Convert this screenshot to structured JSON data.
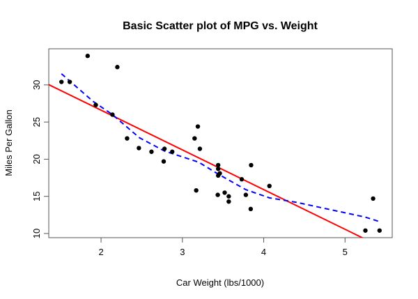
{
  "chart_data": {
    "type": "scatter",
    "title": "Basic Scatter plot of MPG vs. Weight",
    "xlabel": "Car Weight (lbs/1000)",
    "ylabel": "Miles Per Gallon",
    "xlim": [
      1.357,
      5.58
    ],
    "ylim": [
      9.44,
      34.86
    ],
    "xticks": [
      2,
      3,
      4,
      5
    ],
    "yticks": [
      10,
      15,
      20,
      25,
      30
    ],
    "grid": false,
    "points": {
      "x": [
        2.62,
        2.875,
        2.32,
        3.215,
        3.44,
        3.46,
        3.57,
        3.19,
        3.15,
        3.44,
        3.44,
        4.07,
        3.73,
        3.78,
        5.25,
        5.424,
        5.345,
        2.2,
        1.615,
        1.835,
        2.465,
        3.52,
        3.435,
        3.84,
        3.845,
        1.935,
        2.14,
        1.513,
        3.17,
        2.77,
        3.57,
        2.78
      ],
      "y": [
        21.0,
        21.0,
        22.8,
        21.4,
        18.7,
        18.1,
        14.3,
        24.4,
        22.8,
        19.2,
        17.8,
        16.4,
        17.3,
        15.2,
        10.4,
        10.4,
        14.7,
        32.4,
        30.4,
        33.9,
        21.5,
        15.5,
        15.2,
        13.3,
        19.2,
        27.3,
        26.0,
        30.4,
        15.8,
        19.7,
        15.0,
        21.4
      ],
      "color": "#000000"
    },
    "regression_line": {
      "intercept": 37.285,
      "slope": -5.344,
      "color": "#ff0000",
      "style": "solid"
    },
    "lowess_line": {
      "x": [
        1.513,
        1.9,
        2.14,
        2.47,
        2.78,
        3.2,
        3.44,
        3.78,
        4.07,
        4.4,
        5.25,
        5.424
      ],
      "y": [
        31.5,
        27.8,
        26.0,
        22.9,
        21.1,
        19.6,
        18.0,
        15.9,
        14.8,
        14.2,
        12.2,
        11.6
      ],
      "color": "#0000ff",
      "style": "dashed"
    }
  }
}
